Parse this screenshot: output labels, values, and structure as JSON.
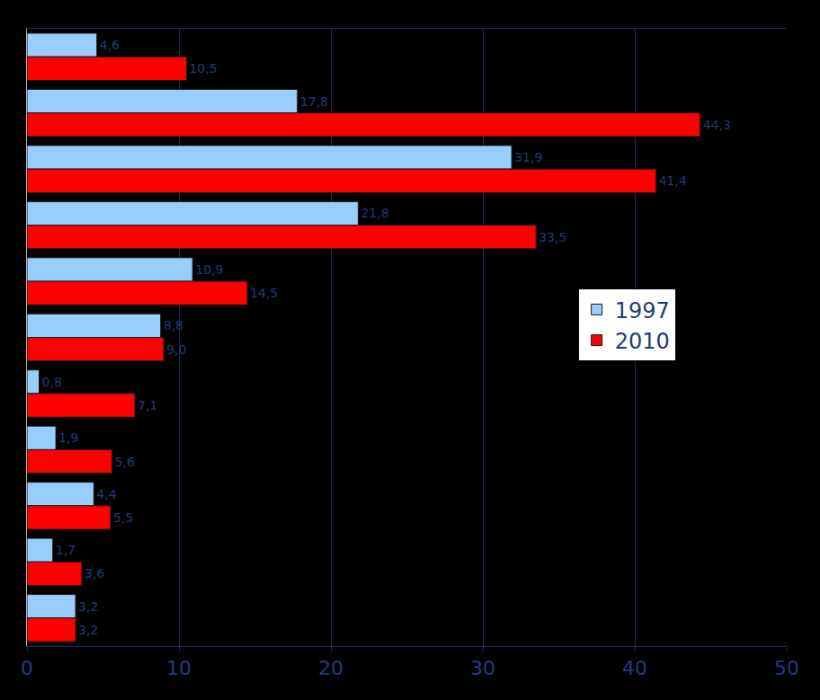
{
  "chart_data": {
    "type": "bar",
    "orientation": "horizontal",
    "categories": [
      null,
      null,
      null,
      null,
      null,
      null,
      null,
      null,
      null,
      null,
      null
    ],
    "series": [
      {
        "name": "1997",
        "color": "#99ccff",
        "values": [
          4.6,
          17.8,
          31.9,
          21.8,
          10.9,
          8.8,
          0.8,
          1.9,
          4.4,
          1.7,
          3.2
        ],
        "value_labels": [
          "4,6",
          "17,8",
          "31,9",
          "21,8",
          "10,9",
          "8,8",
          "0,8",
          "1,9",
          "4,4",
          "1,7",
          "3,2"
        ]
      },
      {
        "name": "2010",
        "color": "#ff0000",
        "values": [
          10.5,
          44.3,
          41.4,
          33.5,
          14.5,
          9.0,
          7.1,
          5.6,
          5.5,
          3.6,
          3.2
        ],
        "value_labels": [
          "10,5",
          "44,3",
          "41,4",
          "33,5",
          "14,5",
          "9,0",
          "7,1",
          "5,6",
          "5,5",
          "3,6",
          "3,2"
        ]
      }
    ],
    "xlim": [
      0,
      50
    ],
    "xticks": [
      0,
      10,
      20,
      30,
      40,
      50
    ],
    "grid": true,
    "legend": "right",
    "data_labels": true,
    "tick_labels": "x"
  }
}
